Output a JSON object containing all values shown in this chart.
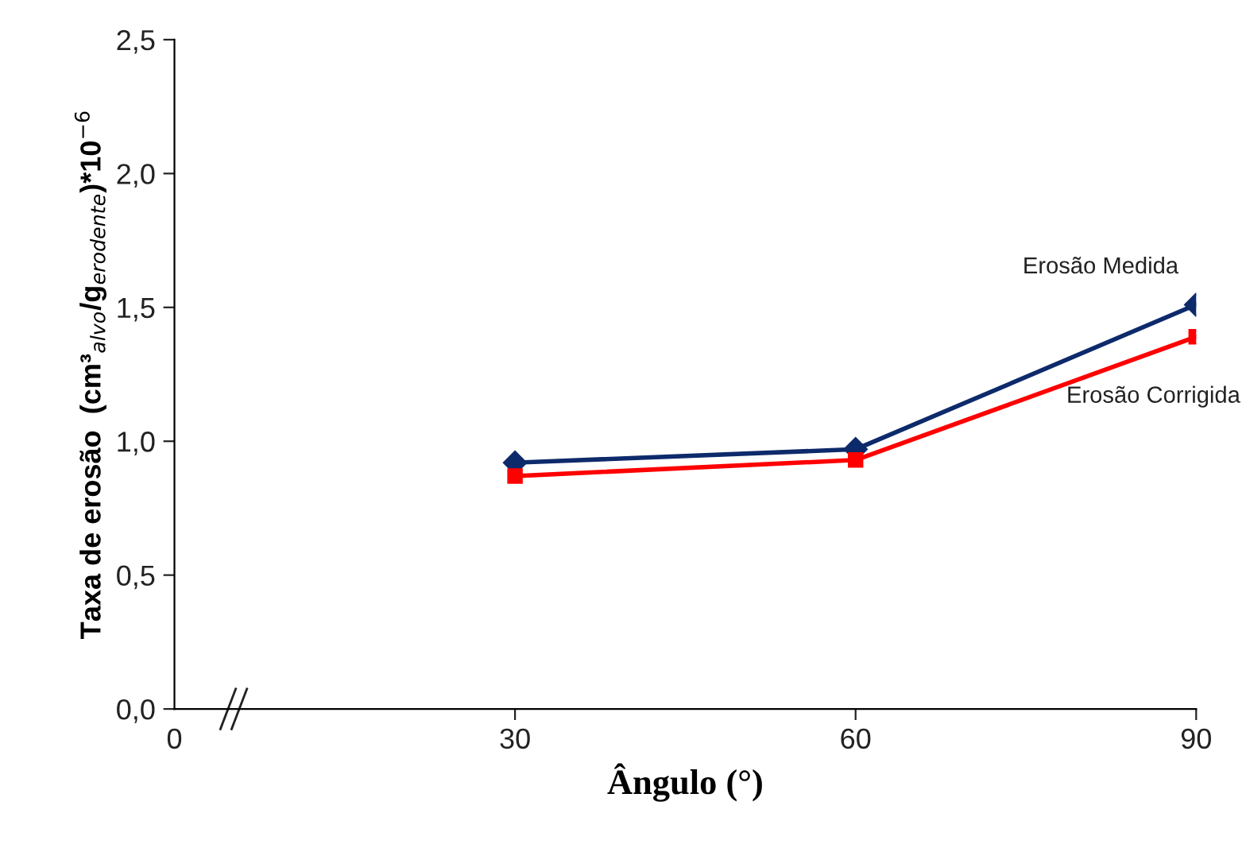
{
  "chart_data": {
    "type": "line",
    "xlabel": "Ângulo (°)",
    "ylabel": "Taxa de erosão  (cm³$_{alvo}$/g$_{erodente}$)*10$^{−6}$",
    "x": [
      30,
      60,
      90
    ],
    "xlim": [
      0,
      90
    ],
    "xticks": [
      0,
      30,
      60,
      90
    ],
    "ylim": [
      0,
      2.5
    ],
    "yticks": [
      {
        "value": 0,
        "label": "0,0"
      },
      {
        "value": 0.5,
        "label": "0,5"
      },
      {
        "value": 1,
        "label": "1,0"
      },
      {
        "value": 1.5,
        "label": "1,5"
      },
      {
        "value": 2,
        "label": "2,0"
      },
      {
        "value": 2.5,
        "label": "2,5"
      }
    ],
    "series": [
      {
        "name": "Erosão Medida",
        "color": "#0d2a6b",
        "marker": "diamond",
        "values": [
          0.92,
          0.97,
          1.51
        ]
      },
      {
        "name": "Erosão Corrigida",
        "color": "#ff0000",
        "marker": "square",
        "values": [
          0.87,
          0.93,
          1.39
        ]
      }
    ],
    "grid": false,
    "legend": false
  }
}
